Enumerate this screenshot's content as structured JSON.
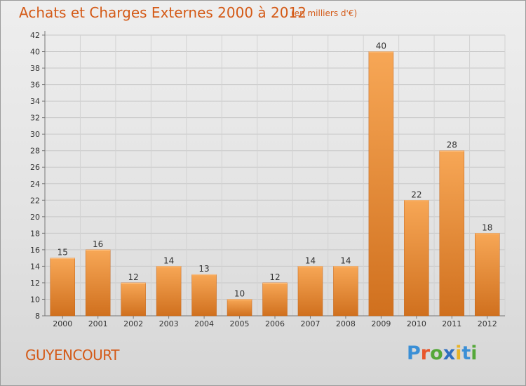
{
  "title": "Achats et Charges Externes 2000 à 2012",
  "unit_note": "(en milliers d'€)",
  "commune": "GUYENCOURT",
  "logo": {
    "text": "Proxiti",
    "letter_colors": [
      "#3a8fd6",
      "#e8552a",
      "#55a83a",
      "#2f6fc0",
      "#e8b428",
      "#3a8fd6",
      "#55a83a"
    ]
  },
  "colors": {
    "accent": "#d45a17",
    "bar_top": "#f7a756",
    "bar_bottom": "#d0701e"
  },
  "chart_data": {
    "type": "bar",
    "categories": [
      "2000",
      "2001",
      "2002",
      "2003",
      "2004",
      "2005",
      "2006",
      "2007",
      "2008",
      "2009",
      "2010",
      "2011",
      "2012"
    ],
    "values": [
      15,
      16,
      12,
      14,
      13,
      10,
      12,
      14,
      14,
      40,
      22,
      28,
      18
    ],
    "ylim": [
      8,
      42
    ],
    "yticks": [
      8,
      10,
      12,
      14,
      16,
      18,
      20,
      22,
      24,
      26,
      28,
      30,
      32,
      34,
      36,
      38,
      40,
      42
    ],
    "grid": true,
    "data_labels": true
  }
}
